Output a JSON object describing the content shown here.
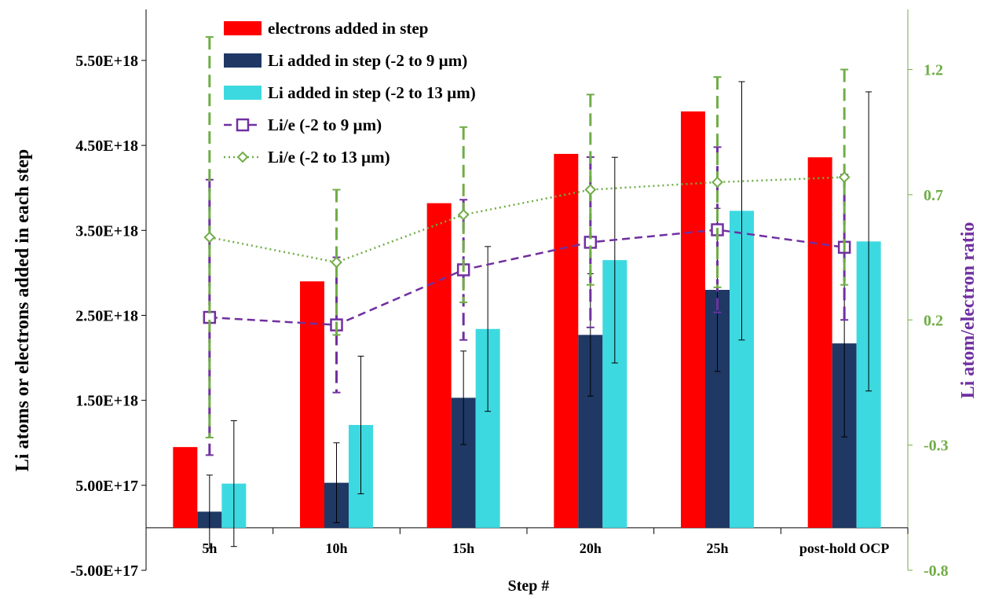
{
  "chart_data": {
    "type": "bar",
    "title": "",
    "xlabel": "Step #",
    "ylabel_left": "Li atoms or electrons added in each step",
    "ylabel_right": "Li atom/electron ratio",
    "categories": [
      "5h",
      "10h",
      "15h",
      "20h",
      "25h",
      "post-hold OCP"
    ],
    "y_left_ticks": [
      "-5.00E+17",
      "5.00E+17",
      "1.50E+18",
      "2.50E+18",
      "3.50E+18",
      "4.50E+18",
      "5.50E+18"
    ],
    "y_right_ticks": [
      "-0.8",
      "-0.3",
      "0.2",
      "0.7",
      "1.2"
    ],
    "y_left_range": [
      -5e+17,
      6.1e+18
    ],
    "y_right_range": [
      -0.8,
      1.44
    ],
    "grid": false,
    "legend_position": "top-left",
    "bar_series": [
      {
        "name": "electrons added in step",
        "color": "#ff0000",
        "values": [
          9.5e+17,
          2.9e+18,
          3.82e+18,
          4.4e+18,
          4.9e+18,
          4.36e+18
        ],
        "err": [
          null,
          null,
          null,
          null,
          null,
          null
        ]
      },
      {
        "name": "Li added in step (-2 to 9 µm)",
        "color": "#1f3864",
        "values": [
          1.9e+17,
          5.3e+17,
          1.53e+18,
          2.27e+18,
          2.8e+18,
          2.17e+18
        ],
        "err": [
          4.3e+17,
          4.7e+17,
          5.5e+17,
          7.2e+17,
          9.6e+17,
          1.1e+18
        ]
      },
      {
        "name": "Li added in step (-2 to 13 µm)",
        "color": "#3dd9e0",
        "values": [
          5.2e+17,
          1.21e+18,
          2.34e+18,
          3.15e+18,
          3.73e+18,
          3.37e+18
        ],
        "err": [
          7.4e+17,
          8.1e+17,
          9.7e+17,
          1.21e+18,
          1.52e+18,
          1.76e+18
        ]
      }
    ],
    "ratio_series": [
      {
        "name": "Li/e (-2 to 9 µm)",
        "color": "#7030a0",
        "marker": "square",
        "line": "dashed",
        "values": [
          0.21,
          0.18,
          0.4,
          0.51,
          0.56,
          0.49
        ],
        "err": [
          0.55,
          0.27,
          0.28,
          0.34,
          0.33,
          0.29
        ]
      },
      {
        "name": "Li/e (-2 to 13 µm)",
        "color": "#70ad47",
        "marker": "diamond",
        "line": "dotted",
        "values": [
          0.53,
          0.43,
          0.62,
          0.72,
          0.75,
          0.77
        ],
        "err": [
          0.8,
          0.29,
          0.35,
          0.38,
          0.42,
          0.43
        ]
      }
    ]
  }
}
